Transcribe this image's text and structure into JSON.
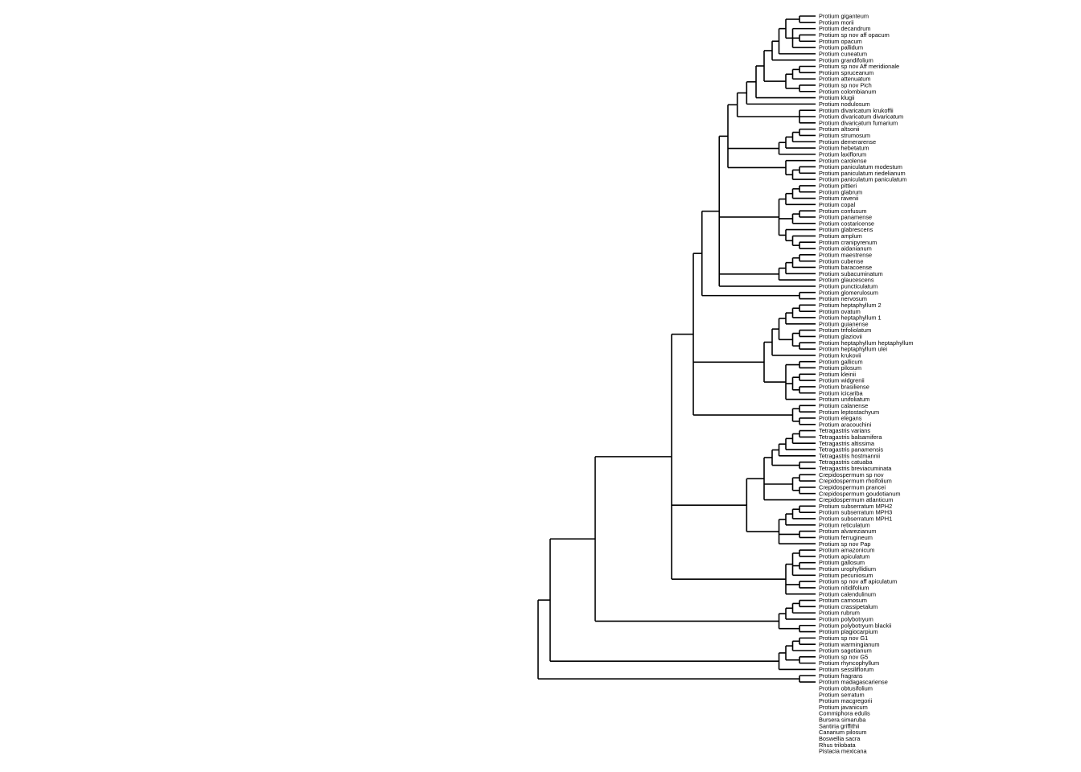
{
  "tips": [
    "Protium giganteum",
    "Protium morii",
    "Protium decandrum",
    "Protium sp nov aff opacum",
    "Protium opacum",
    "Protium pallidum",
    "Protium cuneatum",
    "Protium grandifolium",
    "Protium sp nov Aff meridionale",
    "Protium spruceanum",
    "Protium attenuatum",
    "Protium sp nov Pich",
    "Protium colombianum",
    "Protium klugii",
    "Protium nodulosum",
    "Protium divaricatum krukoffii",
    "Protium divaricatum divaricatum",
    "Protium divaricatum fumarium",
    "Protium altsonii",
    "Protium strumosum",
    "Protium demerarense",
    "Protium hebetatum",
    "Protium laxiflorum",
    "Protium carolense",
    "Protium paniculatum modestum",
    "Protium paniculatum riedelianum",
    "Protium paniculatum paniculatum",
    "Protium pittieri",
    "Protium glabrum",
    "Protium ravenii",
    "Protium copal",
    "Protium confusum",
    "Protium panamense",
    "Protium costaricense",
    "Protium glabrescens",
    "Protium amplum",
    "Protium cranipyrenum",
    "Protium aidanianum",
    "Protium maestrense",
    "Protium cubense",
    "Protium baracoense",
    "Protium subacuminatum",
    "Protium glaucescens",
    "Protium puncticulatum",
    "Protium glomerulosum",
    "Protium nervosum",
    "Protium heptaphyllum 2",
    "Protium ovatum",
    "Protium heptaphyllum 1",
    "Protium guianense",
    "Protium trifoliolatum",
    "Protium glaziovii",
    "Protium heptaphyllum heptaphyllum",
    "Protium heptaphyllum ulei",
    "Protium krukovii",
    "Protium gallicum",
    "Protium pilosum",
    "Protium kleinii",
    "Protium widgrenii",
    "Protium brasiliense",
    "Protium icicariba",
    "Protium unifoliatum",
    "Protium calanense",
    "Protium leptostachyum",
    "Protium elegans",
    "Protium aracouchini",
    "Tetragastris varians",
    "Tetragastris balsamifera",
    "Tetragastris altissima",
    "Tetragastris panamensis",
    "Tetragastris hostmannii",
    "Tetragastris catuaba",
    "Tetragastris breviacuminata",
    "Crepidospermum sp nov",
    "Crepidospermum rhoifolium",
    "Crepidospermum prancei",
    "Crepidospermum goudotianum",
    "Crepidospermum atlanticum",
    "Protium subserratum MPH2",
    "Protium subserratum MPH3",
    "Protium subserratum MPH1",
    "Protium reticulatum",
    "Protium alvarezianum",
    "Protium ferrugineum",
    "Protium sp nov Pap",
    "Protium amazonicum",
    "Protium apiculatum",
    "Protium gallosum",
    "Protium urophyllidium",
    "Protium pecuniosum",
    "Protium sp nov aff apiculatum",
    "Protium nitidifolium",
    "Protium calendulinum",
    "Protium carnosum",
    "Protium crassipetalum",
    "Protium rubrum",
    "Protium polybotryum",
    "Protium polybotryum blackii",
    "Protium plagiocarpium",
    "Protium sp nov G1",
    "Protium warmingianum",
    "Protium sagotianum",
    "Protium sp nov G5",
    "Protium rhyncophyllum",
    "Protium sessiliflorum",
    "Protium fragrans",
    "Protium madagascariense",
    "Protium obtusifolium",
    "Protium serratum",
    "Protium macgregorii",
    "Protium javanicum",
    "Commiphora edulis",
    "Bursera simaruba",
    "Santiria griffithii",
    "Canarium pilosum",
    "Boswellia sacra",
    "Rhus trilobata",
    "Pistacia mexicana"
  ],
  "newick": "(((((((((((((((((((Protium giganteum,Protium morii),(Protium decandrum,(Protium sp nov aff opacum,Protium opacum),Protium pallidum)),Protium cuneatum),Protium grandifolium),(((Protium sp nov Aff meridionale,Protium spruceanum),Protium attenuatum),(Protium sp nov Pich,Protium colombianum))),Protium klugii),Protium nodulosum),(Protium divaricatum krukoffii,Protium divaricatum divaricatum,Protium divaricatum fumarium)),((((Protium altsonii,Protium strumosum),Protium demerarense),Protium hebetatum),Protium laxiflorum),(Protium carolense,((Protium paniculatum modestum,Protium paniculatum riedelianum),Protium paniculatum paniculatum))),((((Protium pittieri,Protium glabrum),Protium ravenii),Protium copal),((Protium confusum,Protium panamense),Protium costaricense),(Protium glabrescens,(Protium amplum,(Protium cranipyrenum,Protium aidanianum)))),((((Protium maestrense,Protium cubense),Protium baracoense),Protium subacuminatum),Protium glaucescens),Protium puncticulatum)),(Protium glomerulosum,Protium nervosum)),((((((Protium heptaphyllum 2,Protium ovatum),Protium heptaphyllum 1),Protium guianense),((Protium trifoliolatum,Protium glaziovii),(Protium heptaphyllum heptaphyllum,Protium heptaphyllum ulei))),Protium krukovii),((Protium gallicum,Protium pilosum),((Protium kleinii,Protium widgrenii),(Protium brasiliense,Protium icicariba)),Protium unifoliatum)),((Protium calanense,Protium leptostachyum),(Protium elegans,Protium aracouchini)))),((((((((Tetragastris varians,Tetragastris balsamifera),Tetragastris altissima),Tetragastris panamensis),Tetragastris hostmannii),(Tetragastris catuaba,Tetragastris breviacuminata)),((Crepidospermum sp nov,Crepidospermum rhoifolium),(Crepidospermum prancei,Crepidospermum goudotianum)),Crepidospermum atlanticum)),((((Protium subserratum MPH2,Protium subserratum MPH3),Protium subserratum MPH1),Protium reticulatum),(Protium alvarezianum,Protium ferrugineum),Protium sp nov Pap)),(((Protium amazonicum,Protium apiculatum),(Protium gallosum,Protium urophyllidium),Protium pecuniosum),(Protium sp nov aff apiculatum,Protium nitidifolium),Protium calendulinum)),((((Protium carnosum,Protium crassipetalum),Protium rubrum),Protium polybotryum),(Protium polybotryum blackii,Protium plagiocarpium)))),((((Protium sp nov G1,Protium warmingianum),Protium sagotianum),(Protium sp nov G5,Protium rhyncophyllum)),Protium sessiliflorum)),(Protium fragrans,Protium madagascariense)),(Protium obtusifolium,Protium serratum)),(Protium macgregorii,Protium javanicum)),(Commiphora edulis,Bursera simaruba)),((Santiria griffithii,Canarium pilosum),Boswellia sacra)),(Rhus trilobata,Pistacia mexicana));"
}
